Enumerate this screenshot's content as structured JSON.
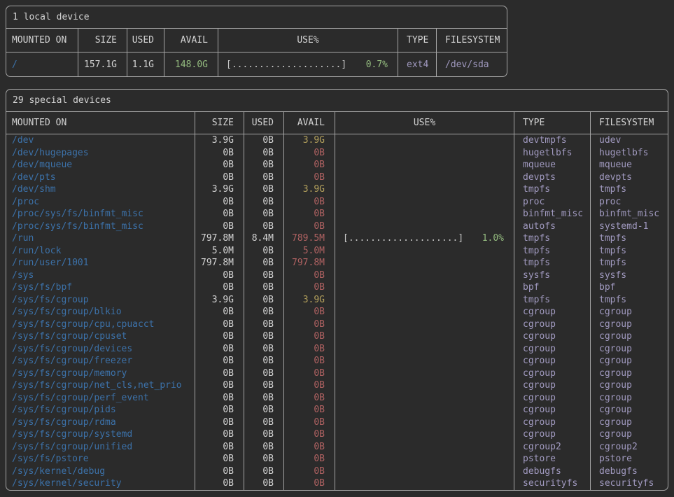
{
  "colors": {
    "background": "#2b2b2b",
    "border": "#a5a5a5",
    "foreground": "#d4d4d4",
    "mount_blue": "#3c72aa",
    "avail_red": "#b06262",
    "avail_yellow": "#b3a05c",
    "avail_green": "#94bb7f",
    "type_lavender": "#a19ac0",
    "bar_gray": "#c6c6c6"
  },
  "headers": [
    "MOUNTED ON",
    "SIZE",
    "USED",
    "AVAIL",
    "USE%",
    "TYPE",
    "FILESYSTEM"
  ],
  "local_table": {
    "title": "1 local device",
    "rows": [
      {
        "mount": "/",
        "size": "157.1G",
        "used": "1.1G",
        "avail": "148.0G",
        "avail_level": "high",
        "bar": "[....................]",
        "pct": "0.7%",
        "type": "ext4",
        "fs": "/dev/sda"
      }
    ]
  },
  "special_table": {
    "title": "29 special devices",
    "rows": [
      {
        "mount": "/dev",
        "size": "3.9G",
        "used": "0B",
        "avail": "3.9G",
        "avail_level": "mid",
        "bar": "",
        "pct": "",
        "type": "devtmpfs",
        "fs": "udev"
      },
      {
        "mount": "/dev/hugepages",
        "size": "0B",
        "used": "0B",
        "avail": "0B",
        "avail_level": "low",
        "bar": "",
        "pct": "",
        "type": "hugetlbfs",
        "fs": "hugetlbfs"
      },
      {
        "mount": "/dev/mqueue",
        "size": "0B",
        "used": "0B",
        "avail": "0B",
        "avail_level": "low",
        "bar": "",
        "pct": "",
        "type": "mqueue",
        "fs": "mqueue"
      },
      {
        "mount": "/dev/pts",
        "size": "0B",
        "used": "0B",
        "avail": "0B",
        "avail_level": "low",
        "bar": "",
        "pct": "",
        "type": "devpts",
        "fs": "devpts"
      },
      {
        "mount": "/dev/shm",
        "size": "3.9G",
        "used": "0B",
        "avail": "3.9G",
        "avail_level": "mid",
        "bar": "",
        "pct": "",
        "type": "tmpfs",
        "fs": "tmpfs"
      },
      {
        "mount": "/proc",
        "size": "0B",
        "used": "0B",
        "avail": "0B",
        "avail_level": "low",
        "bar": "",
        "pct": "",
        "type": "proc",
        "fs": "proc"
      },
      {
        "mount": "/proc/sys/fs/binfmt_misc",
        "size": "0B",
        "used": "0B",
        "avail": "0B",
        "avail_level": "low",
        "bar": "",
        "pct": "",
        "type": "binfmt_misc",
        "fs": "binfmt_misc"
      },
      {
        "mount": "/proc/sys/fs/binfmt_misc",
        "size": "0B",
        "used": "0B",
        "avail": "0B",
        "avail_level": "low",
        "bar": "",
        "pct": "",
        "type": "autofs",
        "fs": "systemd-1"
      },
      {
        "mount": "/run",
        "size": "797.8M",
        "used": "8.4M",
        "avail": "789.5M",
        "avail_level": "low",
        "bar": "[....................]",
        "pct": "1.0%",
        "type": "tmpfs",
        "fs": "tmpfs"
      },
      {
        "mount": "/run/lock",
        "size": "5.0M",
        "used": "0B",
        "avail": "5.0M",
        "avail_level": "low",
        "bar": "",
        "pct": "",
        "type": "tmpfs",
        "fs": "tmpfs"
      },
      {
        "mount": "/run/user/1001",
        "size": "797.8M",
        "used": "0B",
        "avail": "797.8M",
        "avail_level": "low",
        "bar": "",
        "pct": "",
        "type": "tmpfs",
        "fs": "tmpfs"
      },
      {
        "mount": "/sys",
        "size": "0B",
        "used": "0B",
        "avail": "0B",
        "avail_level": "low",
        "bar": "",
        "pct": "",
        "type": "sysfs",
        "fs": "sysfs"
      },
      {
        "mount": "/sys/fs/bpf",
        "size": "0B",
        "used": "0B",
        "avail": "0B",
        "avail_level": "low",
        "bar": "",
        "pct": "",
        "type": "bpf",
        "fs": "bpf"
      },
      {
        "mount": "/sys/fs/cgroup",
        "size": "3.9G",
        "used": "0B",
        "avail": "3.9G",
        "avail_level": "mid",
        "bar": "",
        "pct": "",
        "type": "tmpfs",
        "fs": "tmpfs"
      },
      {
        "mount": "/sys/fs/cgroup/blkio",
        "size": "0B",
        "used": "0B",
        "avail": "0B",
        "avail_level": "low",
        "bar": "",
        "pct": "",
        "type": "cgroup",
        "fs": "cgroup"
      },
      {
        "mount": "/sys/fs/cgroup/cpu,cpuacct",
        "size": "0B",
        "used": "0B",
        "avail": "0B",
        "avail_level": "low",
        "bar": "",
        "pct": "",
        "type": "cgroup",
        "fs": "cgroup"
      },
      {
        "mount": "/sys/fs/cgroup/cpuset",
        "size": "0B",
        "used": "0B",
        "avail": "0B",
        "avail_level": "low",
        "bar": "",
        "pct": "",
        "type": "cgroup",
        "fs": "cgroup"
      },
      {
        "mount": "/sys/fs/cgroup/devices",
        "size": "0B",
        "used": "0B",
        "avail": "0B",
        "avail_level": "low",
        "bar": "",
        "pct": "",
        "type": "cgroup",
        "fs": "cgroup"
      },
      {
        "mount": "/sys/fs/cgroup/freezer",
        "size": "0B",
        "used": "0B",
        "avail": "0B",
        "avail_level": "low",
        "bar": "",
        "pct": "",
        "type": "cgroup",
        "fs": "cgroup"
      },
      {
        "mount": "/sys/fs/cgroup/memory",
        "size": "0B",
        "used": "0B",
        "avail": "0B",
        "avail_level": "low",
        "bar": "",
        "pct": "",
        "type": "cgroup",
        "fs": "cgroup"
      },
      {
        "mount": "/sys/fs/cgroup/net_cls,net_prio",
        "size": "0B",
        "used": "0B",
        "avail": "0B",
        "avail_level": "low",
        "bar": "",
        "pct": "",
        "type": "cgroup",
        "fs": "cgroup"
      },
      {
        "mount": "/sys/fs/cgroup/perf_event",
        "size": "0B",
        "used": "0B",
        "avail": "0B",
        "avail_level": "low",
        "bar": "",
        "pct": "",
        "type": "cgroup",
        "fs": "cgroup"
      },
      {
        "mount": "/sys/fs/cgroup/pids",
        "size": "0B",
        "used": "0B",
        "avail": "0B",
        "avail_level": "low",
        "bar": "",
        "pct": "",
        "type": "cgroup",
        "fs": "cgroup"
      },
      {
        "mount": "/sys/fs/cgroup/rdma",
        "size": "0B",
        "used": "0B",
        "avail": "0B",
        "avail_level": "low",
        "bar": "",
        "pct": "",
        "type": "cgroup",
        "fs": "cgroup"
      },
      {
        "mount": "/sys/fs/cgroup/systemd",
        "size": "0B",
        "used": "0B",
        "avail": "0B",
        "avail_level": "low",
        "bar": "",
        "pct": "",
        "type": "cgroup",
        "fs": "cgroup"
      },
      {
        "mount": "/sys/fs/cgroup/unified",
        "size": "0B",
        "used": "0B",
        "avail": "0B",
        "avail_level": "low",
        "bar": "",
        "pct": "",
        "type": "cgroup2",
        "fs": "cgroup2"
      },
      {
        "mount": "/sys/fs/pstore",
        "size": "0B",
        "used": "0B",
        "avail": "0B",
        "avail_level": "low",
        "bar": "",
        "pct": "",
        "type": "pstore",
        "fs": "pstore"
      },
      {
        "mount": "/sys/kernel/debug",
        "size": "0B",
        "used": "0B",
        "avail": "0B",
        "avail_level": "low",
        "bar": "",
        "pct": "",
        "type": "debugfs",
        "fs": "debugfs"
      },
      {
        "mount": "/sys/kernel/security",
        "size": "0B",
        "used": "0B",
        "avail": "0B",
        "avail_level": "low",
        "bar": "",
        "pct": "",
        "type": "securityfs",
        "fs": "securityfs"
      }
    ]
  }
}
